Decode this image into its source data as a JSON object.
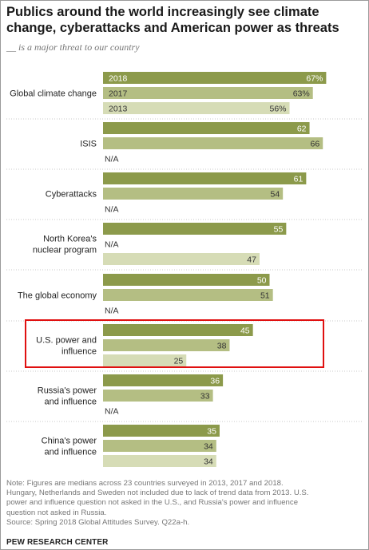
{
  "title": "Publics around the world increasingly see climate change, cyberattacks and American power as threats",
  "subtitle": "__ is a major threat to our country",
  "notes": [
    "Note: Figures are medians across 23 countries surveyed in 2013, 2017 and 2018.",
    "Hungary, Netherlands and Sweden not included due to lack of trend data from 2013. U.S.",
    "power and influence question not asked in the U.S., and Russia's power and influence",
    "question not asked in Russia."
  ],
  "source": "Source: Spring 2018 Global Attitudes Survey. Q22a-h.",
  "brand": "PEW RESEARCH CENTER",
  "colors": {
    "2018": "#8c9a4b",
    "2017": "#b4be83",
    "2013": "#d6dcb6",
    "highlight": "#e01010"
  },
  "chart_data": {
    "type": "bar",
    "orientation": "horizontal",
    "unit": "%",
    "xlim": [
      0,
      70
    ],
    "categories": [
      "Global climate change",
      "ISIS",
      "Cyberattacks",
      "North Korea's nuclear program",
      "The global economy",
      "U.S. power and influence",
      "Russia's power and influence",
      "China's power and influence"
    ],
    "series": [
      {
        "name": "2018",
        "values": [
          67,
          62,
          61,
          55,
          50,
          45,
          36,
          35
        ]
      },
      {
        "name": "2017",
        "values": [
          63,
          66,
          54,
          null,
          51,
          38,
          33,
          34
        ]
      },
      {
        "name": "2013",
        "values": [
          56,
          null,
          null,
          47,
          null,
          25,
          null,
          34
        ]
      }
    ],
    "groups": [
      {
        "label_lines": [
          "Global climate change"
        ],
        "rows": [
          {
            "series": "2018",
            "value": 67,
            "label": "67%",
            "series_label": "2018"
          },
          {
            "series": "2017",
            "value": 63,
            "label": "63%",
            "series_label": "2017"
          },
          {
            "series": "2013",
            "value": 56,
            "label": "56%",
            "series_label": "2013"
          }
        ]
      },
      {
        "label_lines": [
          "ISIS"
        ],
        "rows": [
          {
            "series": "2018",
            "value": 62,
            "label": "62"
          },
          {
            "series": "2017",
            "value": 66,
            "label": "66"
          },
          {
            "series": "2013",
            "value": null,
            "label": "N/A"
          }
        ]
      },
      {
        "label_lines": [
          "Cyberattacks"
        ],
        "rows": [
          {
            "series": "2018",
            "value": 61,
            "label": "61"
          },
          {
            "series": "2017",
            "value": 54,
            "label": "54"
          },
          {
            "series": "2013",
            "value": null,
            "label": "N/A"
          }
        ]
      },
      {
        "label_lines": [
          "North Korea's",
          "nuclear program"
        ],
        "rows": [
          {
            "series": "2018",
            "value": 55,
            "label": "55"
          },
          {
            "series": "2017",
            "value": null,
            "label": "N/A"
          },
          {
            "series": "2013",
            "value": 47,
            "label": "47"
          }
        ]
      },
      {
        "label_lines": [
          "The global economy"
        ],
        "rows": [
          {
            "series": "2018",
            "value": 50,
            "label": "50"
          },
          {
            "series": "2017",
            "value": 51,
            "label": "51"
          },
          {
            "series": "2013",
            "value": null,
            "label": "N/A"
          }
        ]
      },
      {
        "label_lines": [
          "U.S. power and",
          "influence"
        ],
        "highlighted": true,
        "rows": [
          {
            "series": "2018",
            "value": 45,
            "label": "45"
          },
          {
            "series": "2017",
            "value": 38,
            "label": "38"
          },
          {
            "series": "2013",
            "value": 25,
            "label": "25"
          }
        ]
      },
      {
        "label_lines": [
          "Russia's power",
          "and influence"
        ],
        "rows": [
          {
            "series": "2018",
            "value": 36,
            "label": "36"
          },
          {
            "series": "2017",
            "value": 33,
            "label": "33"
          },
          {
            "series": "2013",
            "value": null,
            "label": "N/A"
          }
        ]
      },
      {
        "label_lines": [
          "China's power",
          "and influence"
        ],
        "rows": [
          {
            "series": "2018",
            "value": 35,
            "label": "35"
          },
          {
            "series": "2017",
            "value": 34,
            "label": "34"
          },
          {
            "series": "2013",
            "value": 34,
            "label": "34"
          }
        ]
      }
    ]
  }
}
